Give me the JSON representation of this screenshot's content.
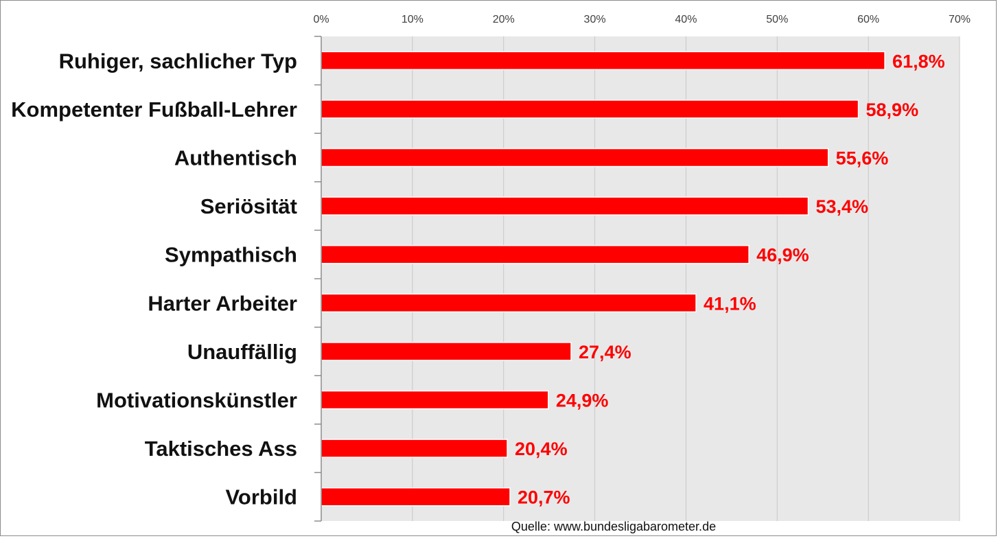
{
  "chart_data": {
    "type": "bar",
    "orientation": "horizontal",
    "title": "",
    "xlabel": "",
    "ylabel": "",
    "categories": [
      "Ruhiger, sachlicher Typ",
      "Kompetenter Fußball-Lehrer",
      "Authentisch",
      "Seriösität",
      "Sympathisch",
      "Harter Arbeiter",
      "Unauffällig",
      "Motivationskünstler",
      "Taktisches Ass",
      "Vorbild"
    ],
    "values": [
      61.8,
      58.9,
      55.6,
      53.4,
      46.9,
      41.1,
      27.4,
      24.9,
      20.4,
      20.7
    ],
    "data_labels": [
      "61,8%",
      "58,9%",
      "55,6%",
      "53,4%",
      "46,9%",
      "41,1%",
      "27,4%",
      "24,9%",
      "20,4%",
      "20,7%"
    ],
    "xlim": [
      0,
      70
    ],
    "x_ticks": [
      0,
      10,
      20,
      30,
      40,
      50,
      60,
      70
    ],
    "x_tick_labels": [
      "0%",
      "10%",
      "20%",
      "30%",
      "40%",
      "50%",
      "60%",
      "70%"
    ],
    "x_axis_position": "top",
    "grid": true,
    "legend": "none",
    "bar_color": "#ff0000",
    "data_label_color": "#ff0000",
    "plot_background": "#e8e8e8",
    "source": "Quelle: www.bundesligabarometer.de"
  }
}
